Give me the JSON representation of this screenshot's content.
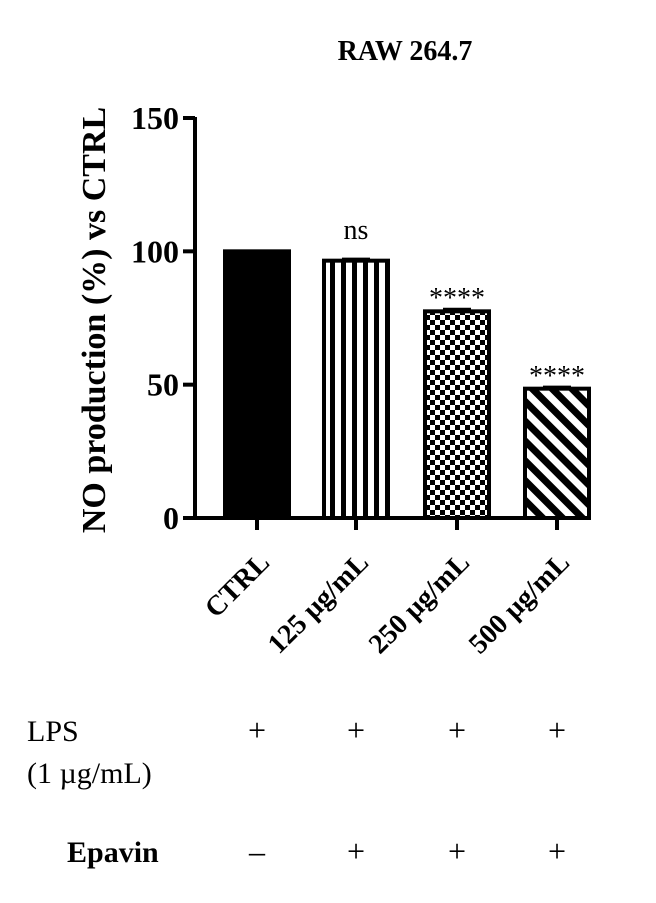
{
  "chart_data": {
    "type": "bar",
    "title": "RAW 264.7",
    "ylabel": "NO production (%) vs CTRL",
    "xlabel": "",
    "ylim": [
      0,
      150
    ],
    "yticks": [
      "0",
      "50",
      "100",
      "150"
    ],
    "categories": [
      "CTRL",
      "125 µg/mL",
      "250 µg/mL",
      "500 µg/mL"
    ],
    "values": [
      100,
      96.5,
      77.5,
      48.5
    ],
    "errors": [
      0,
      0.6,
      0.8,
      0.6
    ],
    "significance": [
      "",
      "ns",
      "****",
      "****"
    ],
    "fills": [
      "solid",
      "vertical-stripes",
      "checker",
      "diagonal-stripes"
    ]
  },
  "treatments": [
    {
      "label_lines": [
        "LPS",
        "(1 µg/mL)"
      ],
      "bold": false,
      "signs": [
        "+",
        "+",
        "+",
        "+"
      ]
    },
    {
      "label_lines": [
        "Epavin"
      ],
      "bold": true,
      "signs": [
        "–",
        "+",
        "+",
        "+"
      ]
    }
  ],
  "colors": {
    "ink": "#000000",
    "background": "#ffffff"
  }
}
